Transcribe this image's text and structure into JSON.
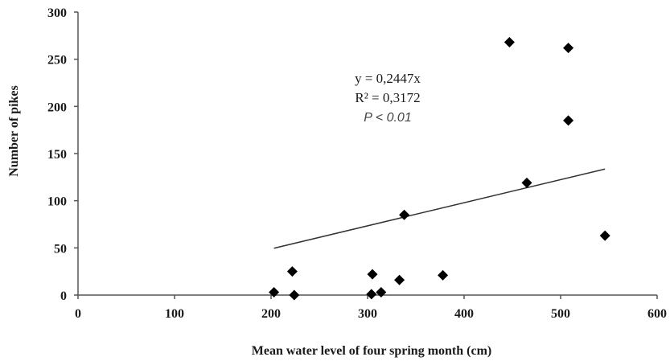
{
  "chart_data": {
    "type": "scatter",
    "title": "",
    "xlabel": "Mean water level of four spring month (cm)",
    "ylabel": "Number of pikes",
    "xlim": [
      0,
      600
    ],
    "ylim": [
      0,
      300
    ],
    "x_ticks": [
      "0",
      "100",
      "200",
      "300",
      "400",
      "500",
      "600"
    ],
    "y_ticks": [
      "0",
      "50",
      "100",
      "150",
      "200",
      "250",
      "300"
    ],
    "grid": false,
    "legend": "none",
    "marker": "diamond",
    "marker_color": "#000000",
    "series": [
      {
        "points": [
          {
            "x": 203,
            "y": 3
          },
          {
            "x": 222,
            "y": 25
          },
          {
            "x": 224,
            "y": 0
          },
          {
            "x": 304,
            "y": 1
          },
          {
            "x": 305,
            "y": 22
          },
          {
            "x": 314,
            "y": 3
          },
          {
            "x": 333,
            "y": 16
          },
          {
            "x": 338,
            "y": 85
          },
          {
            "x": 378,
            "y": 21
          },
          {
            "x": 447,
            "y": 268
          },
          {
            "x": 465,
            "y": 119
          },
          {
            "x": 508,
            "y": 262
          },
          {
            "x": 508,
            "y": 185
          },
          {
            "x": 546,
            "y": 63
          }
        ]
      }
    ],
    "trendline": {
      "slope": 0.2447,
      "x_range": [
        203,
        546
      ]
    },
    "annotations": {
      "equation": "y = 0,2447x",
      "r_squared": "R² = 0,3172",
      "p_value": "P < 0.01"
    }
  }
}
